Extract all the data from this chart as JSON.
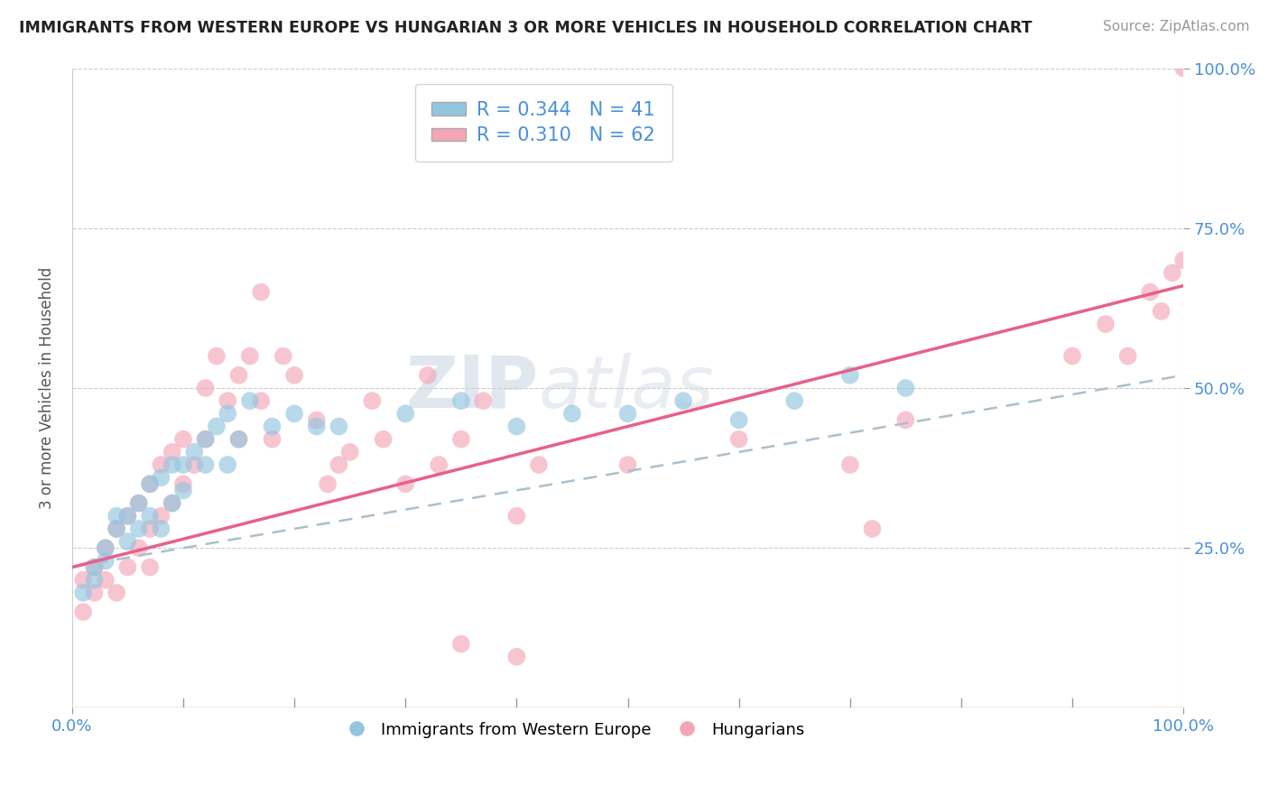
{
  "title": "IMMIGRANTS FROM WESTERN EUROPE VS HUNGARIAN 3 OR MORE VEHICLES IN HOUSEHOLD CORRELATION CHART",
  "source": "Source: ZipAtlas.com",
  "ylabel": "3 or more Vehicles in Household",
  "xmin": 0.0,
  "xmax": 1.0,
  "ymin": 0.0,
  "ymax": 1.0,
  "legend_r1": "R = 0.344",
  "legend_n1": "N = 41",
  "legend_r2": "R = 0.310",
  "legend_n2": "N = 62",
  "color_blue": "#92C5DE",
  "color_pink": "#F4A6B8",
  "line_blue": "#3A6BC9",
  "line_pink": "#E8608A",
  "line_dashed": "#AABFCC",
  "watermark_zip": "ZIP",
  "watermark_atlas": "atlas",
  "blue_x": [
    0.01,
    0.02,
    0.02,
    0.03,
    0.03,
    0.04,
    0.04,
    0.05,
    0.05,
    0.06,
    0.06,
    0.07,
    0.07,
    0.08,
    0.08,
    0.09,
    0.09,
    0.1,
    0.1,
    0.11,
    0.12,
    0.12,
    0.13,
    0.14,
    0.14,
    0.15,
    0.16,
    0.18,
    0.2,
    0.22,
    0.24,
    0.3,
    0.35,
    0.4,
    0.45,
    0.5,
    0.55,
    0.6,
    0.65,
    0.7,
    0.75
  ],
  "blue_y": [
    0.18,
    0.22,
    0.2,
    0.25,
    0.23,
    0.28,
    0.3,
    0.26,
    0.3,
    0.28,
    0.32,
    0.3,
    0.35,
    0.28,
    0.36,
    0.32,
    0.38,
    0.34,
    0.38,
    0.4,
    0.42,
    0.38,
    0.44,
    0.38,
    0.46,
    0.42,
    0.48,
    0.44,
    0.46,
    0.44,
    0.44,
    0.46,
    0.48,
    0.44,
    0.46,
    0.46,
    0.48,
    0.45,
    0.48,
    0.52,
    0.5
  ],
  "pink_x": [
    0.01,
    0.01,
    0.02,
    0.02,
    0.03,
    0.03,
    0.04,
    0.04,
    0.05,
    0.05,
    0.06,
    0.06,
    0.07,
    0.07,
    0.07,
    0.08,
    0.08,
    0.09,
    0.09,
    0.1,
    0.1,
    0.11,
    0.12,
    0.12,
    0.13,
    0.14,
    0.15,
    0.15,
    0.16,
    0.17,
    0.17,
    0.18,
    0.19,
    0.2,
    0.22,
    0.23,
    0.24,
    0.25,
    0.27,
    0.28,
    0.3,
    0.32,
    0.33,
    0.35,
    0.37,
    0.4,
    0.42,
    0.5,
    0.6,
    0.7,
    0.72,
    0.75,
    0.9,
    0.93,
    0.95,
    0.97,
    0.98,
    0.99,
    1.0,
    1.0,
    0.35,
    0.4
  ],
  "pink_y": [
    0.2,
    0.15,
    0.18,
    0.22,
    0.2,
    0.25,
    0.18,
    0.28,
    0.22,
    0.3,
    0.25,
    0.32,
    0.28,
    0.35,
    0.22,
    0.3,
    0.38,
    0.32,
    0.4,
    0.35,
    0.42,
    0.38,
    0.5,
    0.42,
    0.55,
    0.48,
    0.52,
    0.42,
    0.55,
    0.48,
    0.65,
    0.42,
    0.55,
    0.52,
    0.45,
    0.35,
    0.38,
    0.4,
    0.48,
    0.42,
    0.35,
    0.52,
    0.38,
    0.42,
    0.48,
    0.3,
    0.38,
    0.38,
    0.42,
    0.38,
    0.28,
    0.45,
    0.55,
    0.6,
    0.55,
    0.65,
    0.62,
    0.68,
    0.7,
    1.0,
    0.1,
    0.08
  ]
}
